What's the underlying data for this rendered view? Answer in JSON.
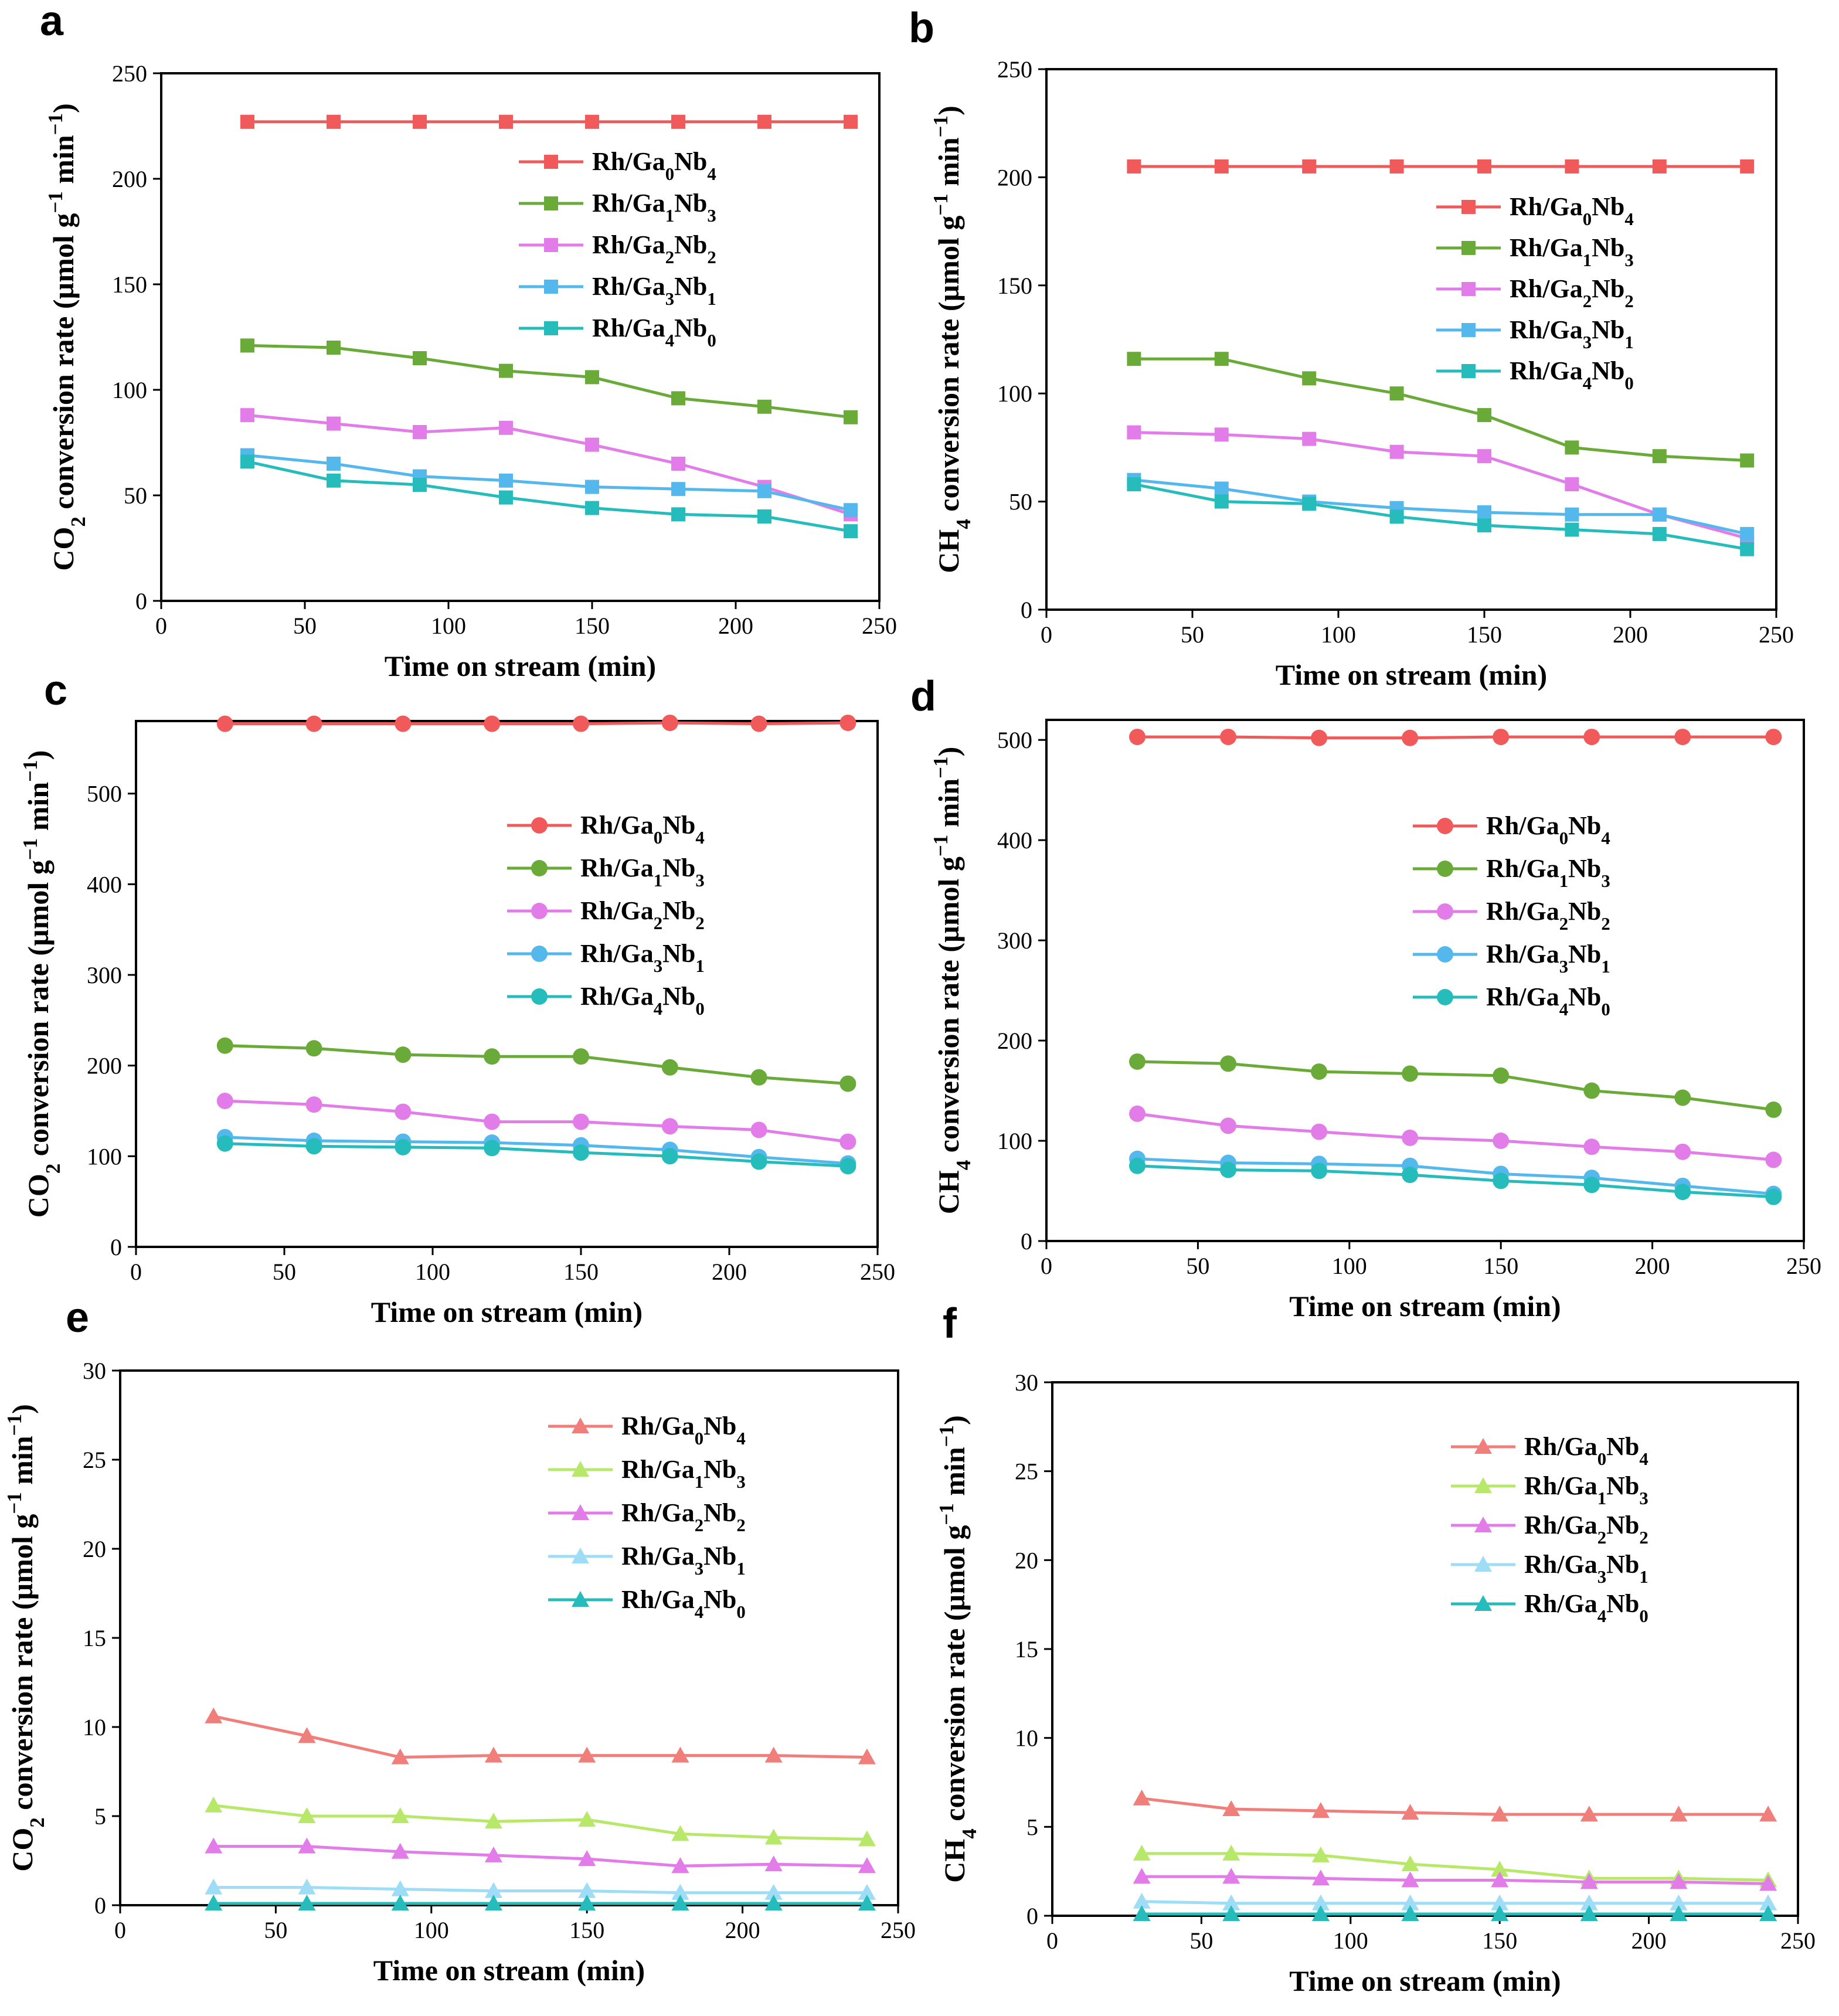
{
  "chart_data": [
    {
      "type": "line",
      "panel": "a",
      "marker": "square",
      "xlabel": "Time on stream (min)",
      "ylabel_parts": [
        "CO",
        "2",
        " conversion rate (µmol g",
        "−1",
        " min",
        "−1",
        ")"
      ],
      "xlim": [
        0,
        250
      ],
      "ylim": [
        0,
        250
      ],
      "xticks": [
        0,
        50,
        100,
        150,
        200,
        250
      ],
      "yticks": [
        0,
        50,
        100,
        150,
        200,
        250
      ],
      "x": [
        30,
        60,
        90,
        120,
        150,
        180,
        210,
        240
      ],
      "series": [
        {
          "name": "Rh/Ga0Nb4",
          "label_parts": [
            "Rh/Ga",
            "0",
            "Nb",
            "4"
          ],
          "color": "#f05a5a",
          "values": [
            227,
            227,
            227,
            227,
            227,
            227,
            227,
            227
          ]
        },
        {
          "name": "Rh/Ga1Nb3",
          "label_parts": [
            "Rh/Ga",
            "1",
            "Nb",
            "3"
          ],
          "color": "#6aaa38",
          "values": [
            121,
            120,
            115,
            109,
            106,
            96,
            92,
            87
          ]
        },
        {
          "name": "Rh/Ga2Nb2",
          "label_parts": [
            "Rh/Ga",
            "2",
            "Nb",
            "2"
          ],
          "color": "#e27ce8",
          "values": [
            88,
            84,
            80,
            82,
            74,
            65,
            54,
            41
          ]
        },
        {
          "name": "Rh/Ga3Nb1",
          "label_parts": [
            "Rh/Ga",
            "3",
            "Nb",
            "1"
          ],
          "color": "#55b8ec",
          "values": [
            69,
            65,
            59,
            57,
            54,
            53,
            52,
            43
          ]
        },
        {
          "name": "Rh/Ga4Nb0",
          "label_parts": [
            "Rh/Ga",
            "4",
            "Nb",
            "0"
          ],
          "color": "#27bcbc",
          "values": [
            66,
            57,
            55,
            49,
            44,
            41,
            40,
            33
          ]
        }
      ]
    },
    {
      "type": "line",
      "panel": "b",
      "marker": "square",
      "xlabel": "Time on stream (min)",
      "ylabel_parts": [
        "CH",
        "4",
        " conversion rate (µmol g",
        "−1",
        " min",
        "−1",
        ")"
      ],
      "xlim": [
        0,
        250
      ],
      "ylim": [
        0,
        250
      ],
      "xticks": [
        0,
        50,
        100,
        150,
        200,
        250
      ],
      "yticks": [
        0,
        50,
        100,
        150,
        200,
        250
      ],
      "x": [
        30,
        60,
        90,
        120,
        150,
        180,
        210,
        240
      ],
      "series": [
        {
          "name": "Rh/Ga0Nb4",
          "label_parts": [
            "Rh/Ga",
            "0",
            "Nb",
            "4"
          ],
          "color": "#f05a5a",
          "values": [
            205,
            205,
            205,
            205,
            205,
            205,
            205,
            205
          ]
        },
        {
          "name": "Rh/Ga1Nb3",
          "label_parts": [
            "Rh/Ga",
            "1",
            "Nb",
            "3"
          ],
          "color": "#6aaa38",
          "values": [
            116,
            116,
            107,
            100,
            90,
            75,
            71,
            69
          ]
        },
        {
          "name": "Rh/Ga2Nb2",
          "label_parts": [
            "Rh/Ga",
            "2",
            "Nb",
            "2"
          ],
          "color": "#e27ce8",
          "values": [
            82,
            81,
            79,
            73,
            71,
            58,
            44,
            33
          ]
        },
        {
          "name": "Rh/Ga3Nb1",
          "label_parts": [
            "Rh/Ga",
            "3",
            "Nb",
            "1"
          ],
          "color": "#55b8ec",
          "values": [
            60,
            56,
            50,
            47,
            45,
            44,
            44,
            35
          ]
        },
        {
          "name": "Rh/Ga4Nb0",
          "label_parts": [
            "Rh/Ga",
            "4",
            "Nb",
            "0"
          ],
          "color": "#27bcbc",
          "values": [
            58,
            50,
            49,
            43,
            39,
            37,
            35,
            28
          ]
        }
      ]
    },
    {
      "type": "line",
      "panel": "c",
      "marker": "circle",
      "xlabel": "Time on stream (min)",
      "ylabel_parts": [
        "CO",
        "2",
        " conversion rate (µmol g",
        "−1",
        " min",
        "−1",
        ")"
      ],
      "xlim": [
        0,
        250
      ],
      "ylim": [
        0,
        580
      ],
      "xticks": [
        0,
        50,
        100,
        150,
        200,
        250
      ],
      "yticks": [
        0,
        100,
        200,
        300,
        400,
        500
      ],
      "x": [
        30,
        60,
        90,
        120,
        150,
        180,
        210,
        240
      ],
      "series": [
        {
          "name": "Rh/Ga0Nb4",
          "label_parts": [
            "Rh/Ga",
            "0",
            "Nb",
            "4"
          ],
          "color": "#f05a5a",
          "values": [
            577,
            577,
            577,
            577,
            577,
            578,
            577,
            578
          ]
        },
        {
          "name": "Rh/Ga1Nb3",
          "label_parts": [
            "Rh/Ga",
            "1",
            "Nb",
            "3"
          ],
          "color": "#6aaa38",
          "values": [
            222,
            219,
            212,
            210,
            210,
            198,
            187,
            180
          ]
        },
        {
          "name": "Rh/Ga2Nb2",
          "label_parts": [
            "Rh/Ga",
            "2",
            "Nb",
            "2"
          ],
          "color": "#e27ce8",
          "values": [
            161,
            157,
            149,
            138,
            138,
            133,
            129,
            116
          ]
        },
        {
          "name": "Rh/Ga3Nb1",
          "label_parts": [
            "Rh/Ga",
            "3",
            "Nb",
            "1"
          ],
          "color": "#55b8ec",
          "values": [
            121,
            117,
            116,
            115,
            112,
            107,
            99,
            92
          ]
        },
        {
          "name": "Rh/Ga4Nb0",
          "label_parts": [
            "Rh/Ga",
            "4",
            "Nb",
            "0"
          ],
          "color": "#27bcbc",
          "values": [
            114,
            111,
            110,
            109,
            104,
            100,
            94,
            89
          ]
        }
      ]
    },
    {
      "type": "line",
      "panel": "d",
      "marker": "circle",
      "xlabel": "Time on stream (min)",
      "ylabel_parts": [
        "CH",
        "4",
        " conversion rate (µmol g",
        "−1",
        " min",
        "−1",
        ")"
      ],
      "xlim": [
        0,
        250
      ],
      "ylim": [
        0,
        520
      ],
      "xticks": [
        0,
        50,
        100,
        150,
        200,
        250
      ],
      "yticks": [
        0,
        100,
        200,
        300,
        400,
        500
      ],
      "x": [
        30,
        60,
        90,
        120,
        150,
        180,
        210,
        240
      ],
      "series": [
        {
          "name": "Rh/Ga0Nb4",
          "label_parts": [
            "Rh/Ga",
            "0",
            "Nb",
            "4"
          ],
          "color": "#f05a5a",
          "values": [
            503,
            503,
            502,
            502,
            503,
            503,
            503,
            503
          ]
        },
        {
          "name": "Rh/Ga1Nb3",
          "label_parts": [
            "Rh/Ga",
            "1",
            "Nb",
            "3"
          ],
          "color": "#6aaa38",
          "values": [
            179,
            177,
            169,
            167,
            165,
            150,
            143,
            131
          ]
        },
        {
          "name": "Rh/Ga2Nb2",
          "label_parts": [
            "Rh/Ga",
            "2",
            "Nb",
            "2"
          ],
          "color": "#e27ce8",
          "values": [
            127,
            115,
            109,
            103,
            100,
            94,
            89,
            81
          ]
        },
        {
          "name": "Rh/Ga3Nb1",
          "label_parts": [
            "Rh/Ga",
            "3",
            "Nb",
            "1"
          ],
          "color": "#55b8ec",
          "values": [
            82,
            78,
            77,
            75,
            67,
            63,
            55,
            47
          ]
        },
        {
          "name": "Rh/Ga4Nb0",
          "label_parts": [
            "Rh/Ga",
            "4",
            "Nb",
            "0"
          ],
          "color": "#27bcbc",
          "values": [
            75,
            71,
            70,
            66,
            60,
            56,
            49,
            44
          ]
        }
      ]
    },
    {
      "type": "line",
      "panel": "e",
      "marker": "triangle",
      "xlabel": "Time on stream (min)",
      "ylabel_parts": [
        "CO",
        "2",
        " conversion rate (µmol g",
        "−1",
        " min",
        "−1",
        ")"
      ],
      "xlim": [
        0,
        250
      ],
      "ylim": [
        0,
        30
      ],
      "xticks": [
        0,
        50,
        100,
        150,
        200,
        250
      ],
      "yticks": [
        0,
        5,
        10,
        15,
        20,
        25,
        30
      ],
      "x": [
        30,
        60,
        90,
        120,
        150,
        180,
        210,
        240
      ],
      "series": [
        {
          "name": "Rh/Ga0Nb4",
          "label_parts": [
            "Rh/Ga",
            "0",
            "Nb",
            "4"
          ],
          "color": "#f07f7b",
          "values": [
            10.6,
            9.5,
            8.3,
            8.4,
            8.4,
            8.4,
            8.4,
            8.3
          ]
        },
        {
          "name": "Rh/Ga1Nb3",
          "label_parts": [
            "Rh/Ga",
            "1",
            "Nb",
            "3"
          ],
          "color": "#b8e86a",
          "values": [
            5.6,
            5.0,
            5.0,
            4.7,
            4.8,
            4.0,
            3.8,
            3.7
          ]
        },
        {
          "name": "Rh/Ga2Nb2",
          "label_parts": [
            "Rh/Ga",
            "2",
            "Nb",
            "2"
          ],
          "color": "#e27ce8",
          "values": [
            3.3,
            3.3,
            3.0,
            2.8,
            2.6,
            2.2,
            2.3,
            2.2
          ]
        },
        {
          "name": "Rh/Ga3Nb1",
          "label_parts": [
            "Rh/Ga",
            "3",
            "Nb",
            "1"
          ],
          "color": "#9fdcf5",
          "values": [
            1.0,
            1.0,
            0.9,
            0.8,
            0.8,
            0.7,
            0.7,
            0.7
          ]
        },
        {
          "name": "Rh/Ga4Nb0",
          "label_parts": [
            "Rh/Ga",
            "4",
            "Nb",
            "0"
          ],
          "color": "#27bcbc",
          "values": [
            0.1,
            0.1,
            0.1,
            0.1,
            0.1,
            0.1,
            0.1,
            0.1
          ]
        }
      ]
    },
    {
      "type": "line",
      "panel": "f",
      "marker": "triangle",
      "xlabel": "Time on stream (min)",
      "ylabel_parts": [
        "CH",
        "4",
        " conversion rate (µmol g",
        "−1",
        " min",
        "−1",
        ")"
      ],
      "xlim": [
        0,
        250
      ],
      "ylim": [
        0,
        30
      ],
      "xticks": [
        0,
        50,
        100,
        150,
        200,
        250
      ],
      "yticks": [
        0,
        5,
        10,
        15,
        20,
        25,
        30
      ],
      "x": [
        30,
        60,
        90,
        120,
        150,
        180,
        210,
        240
      ],
      "series": [
        {
          "name": "Rh/Ga0Nb4",
          "label_parts": [
            "Rh/Ga",
            "0",
            "Nb",
            "4"
          ],
          "color": "#f07f7b",
          "values": [
            6.6,
            6.0,
            5.9,
            5.8,
            5.7,
            5.7,
            5.7,
            5.7
          ]
        },
        {
          "name": "Rh/Ga1Nb3",
          "label_parts": [
            "Rh/Ga",
            "1",
            "Nb",
            "3"
          ],
          "color": "#b8e86a",
          "values": [
            3.5,
            3.5,
            3.4,
            2.9,
            2.6,
            2.1,
            2.1,
            2.0
          ]
        },
        {
          "name": "Rh/Ga2Nb2",
          "label_parts": [
            "Rh/Ga",
            "2",
            "Nb",
            "2"
          ],
          "color": "#e27ce8",
          "values": [
            2.2,
            2.2,
            2.1,
            2.0,
            2.0,
            1.9,
            1.9,
            1.8
          ]
        },
        {
          "name": "Rh/Ga3Nb1",
          "label_parts": [
            "Rh/Ga",
            "3",
            "Nb",
            "1"
          ],
          "color": "#9fdcf5",
          "values": [
            0.8,
            0.7,
            0.7,
            0.7,
            0.7,
            0.7,
            0.7,
            0.7
          ]
        },
        {
          "name": "Rh/Ga4Nb0",
          "label_parts": [
            "Rh/Ga",
            "4",
            "Nb",
            "0"
          ],
          "color": "#27bcbc",
          "values": [
            0.1,
            0.1,
            0.1,
            0.1,
            0.1,
            0.1,
            0.1,
            0.1
          ]
        }
      ]
    }
  ]
}
